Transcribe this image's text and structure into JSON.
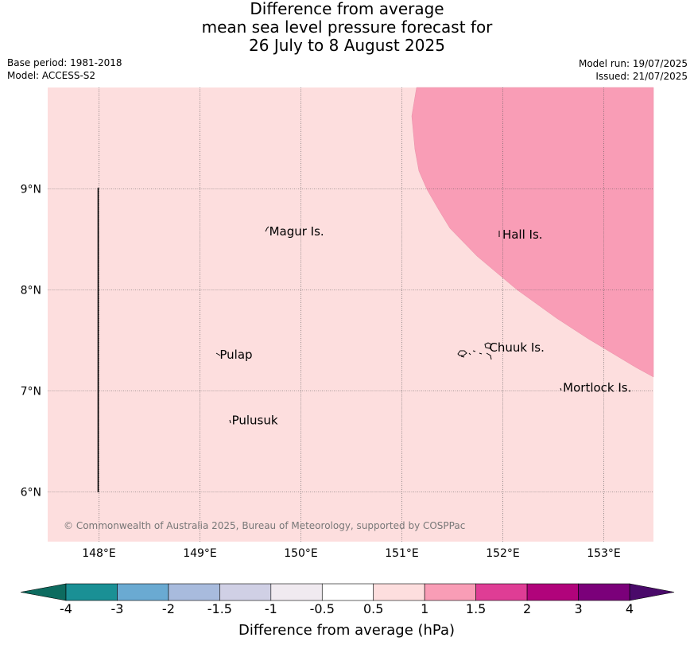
{
  "title": {
    "line1": "Difference from average",
    "line2": "mean sea level pressure forecast for",
    "line3": "26 July to 8 August 2025"
  },
  "meta": {
    "base_period": "Base period: 1981-2018",
    "model": "Model: ACCESS-S2",
    "model_run": "Model run: 19/07/2025",
    "issued": "Issued: 21/07/2025"
  },
  "map": {
    "background_color": "#fddede",
    "anomaly_color": "#f99db6",
    "lon_range": [
      147.5,
      153.5
    ],
    "lat_range": [
      5.5,
      10.0
    ],
    "lon_ticks": [
      {
        "value": 148,
        "label": "148°E"
      },
      {
        "value": 149,
        "label": "149°E"
      },
      {
        "value": 150,
        "label": "150°E"
      },
      {
        "value": 151,
        "label": "151°E"
      },
      {
        "value": 152,
        "label": "152°E"
      },
      {
        "value": 153,
        "label": "153°E"
      }
    ],
    "lat_ticks": [
      {
        "value": 9,
        "label": "9°N"
      },
      {
        "value": 8,
        "label": "8°N"
      },
      {
        "value": 7,
        "label": "7°N"
      },
      {
        "value": 6,
        "label": "6°N"
      }
    ],
    "places": [
      {
        "name": "Magur Is.",
        "lon": 149.67,
        "lat": 8.55
      },
      {
        "name": "Hall Is.",
        "lon": 151.98,
        "lat": 8.52
      },
      {
        "name": "Pulap",
        "lon": 149.18,
        "lat": 7.33
      },
      {
        "name": "Chuuk Is.",
        "lon": 151.85,
        "lat": 7.4
      },
      {
        "name": "Mortlock Is.",
        "lon": 152.58,
        "lat": 7.0
      },
      {
        "name": "Pulusuk",
        "lon": 149.3,
        "lat": 6.68
      }
    ],
    "copyright": "© Commonwealth of Australia 2025, Bureau of Meteorology, supported by COSPPac"
  },
  "colorbar": {
    "title": "Difference from average (hPa)",
    "ticks": [
      "-4",
      "-3",
      "-2",
      "-1.5",
      "-1",
      "-0.5",
      "0.5",
      "1",
      "1.5",
      "2",
      "3",
      "4"
    ],
    "low_extend_color": "#0d6b5f",
    "high_extend_color": "#4a0a6a",
    "bin_colors": [
      "#1a9095",
      "#6aaad2",
      "#a8bbdd",
      "#d0d0e5",
      "#f0eaf0",
      "#ffffff",
      "#fddede",
      "#f99db6",
      "#df3d95",
      "#b1037b",
      "#7b007a"
    ]
  }
}
